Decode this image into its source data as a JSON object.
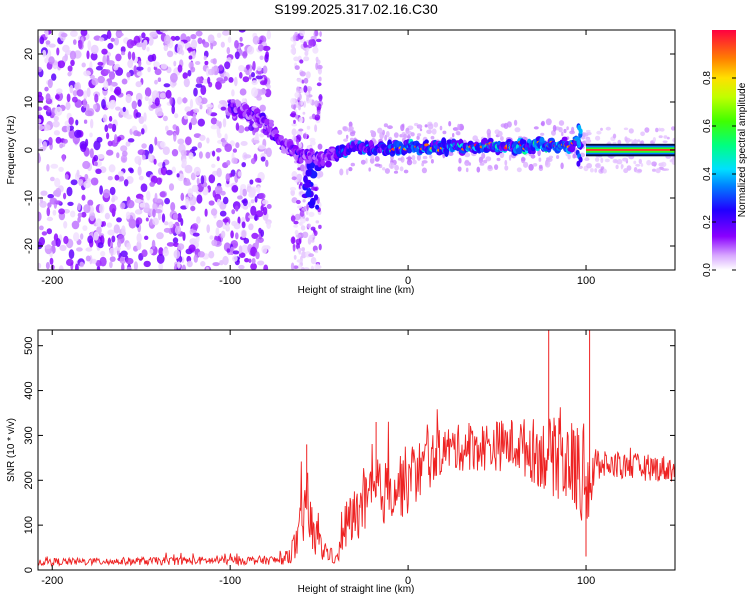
{
  "title": "S199.2025.317.02.16.C30",
  "chart_data": [
    {
      "type": "heatmap",
      "xlabel": "Height of straight line (km)",
      "ylabel": "Frequency (Hz)",
      "xlim": [
        -208,
        150
      ],
      "ylim": [
        -25,
        25
      ],
      "x_ticks": [
        -200,
        -100,
        0,
        100
      ],
      "y_ticks": [
        -20,
        -10,
        0,
        10,
        20
      ],
      "colorbar": {
        "label": "Normalized spectral amplitude",
        "range": [
          0,
          1
        ],
        "ticks": [
          "0.0",
          "0.2",
          "0.4",
          "0.6",
          "0.8"
        ],
        "tick_values": [
          0.0,
          0.2,
          0.4,
          0.6,
          0.8
        ],
        "colors": [
          "#ffffff",
          "#e0b8ff",
          "#8a00ff",
          "#0000ff",
          "#00c8ff",
          "#00ff80",
          "#80ff00",
          "#ffff00",
          "#ff8000",
          "#ff0040"
        ]
      },
      "ridge": [
        {
          "x": -100,
          "y": 9
        },
        {
          "x": -90,
          "y": 8
        },
        {
          "x": -80,
          "y": 6
        },
        {
          "x": -70,
          "y": 1
        },
        {
          "x": -60,
          "y": -1
        },
        {
          "x": -50,
          "y": -2
        },
        {
          "x": -40,
          "y": -1
        },
        {
          "x": -30,
          "y": 1
        },
        {
          "x": -20,
          "y": 0
        },
        {
          "x": 0,
          "y": 0.5
        },
        {
          "x": 40,
          "y": 0.8
        },
        {
          "x": 80,
          "y": 0.9
        },
        {
          "x": 95,
          "y": 1.5
        },
        {
          "x": 100,
          "y": 0
        },
        {
          "x": 150,
          "y": 0
        }
      ]
    },
    {
      "type": "line",
      "xlabel": "Height of straight line (km)",
      "ylabel": "SNR (10 * v/v)",
      "xlim": [
        -208,
        150
      ],
      "ylim": [
        0,
        535
      ],
      "x_ticks": [
        -200,
        -100,
        0,
        100
      ],
      "y_ticks": [
        0,
        100,
        200,
        300,
        400,
        500
      ],
      "color": "#ee2222",
      "envelope": [
        {
          "x": -208,
          "mean": 18,
          "amp": 8
        },
        {
          "x": -70,
          "mean": 22,
          "amp": 10
        },
        {
          "x": -62,
          "mean": 60,
          "amp": 40
        },
        {
          "x": -58,
          "mean": 150,
          "amp": 90
        },
        {
          "x": -52,
          "mean": 60,
          "amp": 40
        },
        {
          "x": -40,
          "mean": 22,
          "amp": 10
        },
        {
          "x": -35,
          "mean": 100,
          "amp": 60
        },
        {
          "x": -20,
          "mean": 160,
          "amp": 70
        },
        {
          "x": 0,
          "mean": 200,
          "amp": 80
        },
        {
          "x": 20,
          "mean": 270,
          "amp": 50
        },
        {
          "x": 60,
          "mean": 280,
          "amp": 60
        },
        {
          "x": 90,
          "mean": 240,
          "amp": 100
        },
        {
          "x": 103,
          "mean": 200,
          "amp": 120
        },
        {
          "x": 108,
          "mean": 235,
          "amp": 30
        },
        {
          "x": 150,
          "mean": 225,
          "amp": 30
        }
      ],
      "peaks": [
        {
          "x": -57,
          "y": 280
        },
        {
          "x": -18,
          "y": 330
        },
        {
          "x": 79,
          "y": 535
        },
        {
          "x": 102,
          "y": 535
        },
        {
          "x": 100,
          "y": 30
        }
      ]
    }
  ]
}
